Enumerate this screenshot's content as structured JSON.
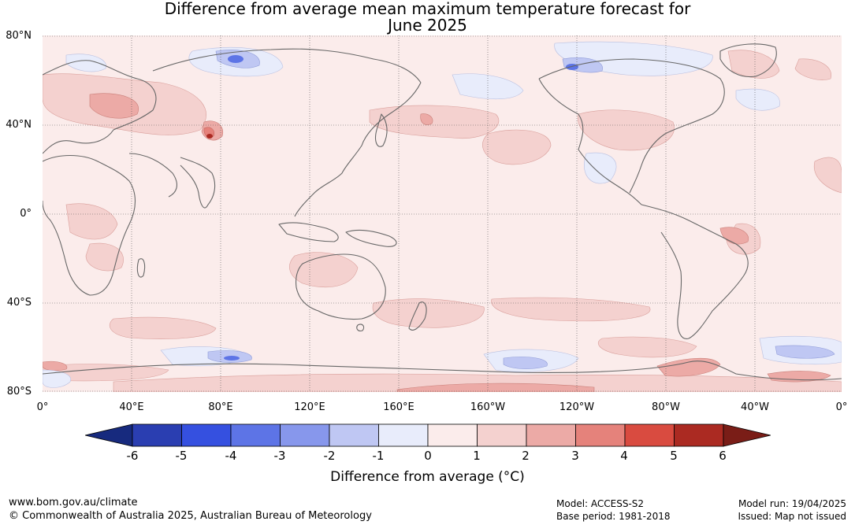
{
  "title": {
    "line1": "Difference from average mean maximum temperature forecast for",
    "line2": "June 2025"
  },
  "map": {
    "lat_labels": [
      "80°N",
      "40°N",
      "0°",
      "40°S",
      "80°S"
    ],
    "lon_labels": [
      "0°",
      "40°E",
      "80°E",
      "120°E",
      "160°E",
      "160°W",
      "120°W",
      "80°W",
      "40°W",
      "0°"
    ],
    "background_color": "#fbeceb",
    "coastline_color": "#666666"
  },
  "colorbar": {
    "ticks": [
      "-6",
      "-5",
      "-4",
      "-3",
      "-2",
      "-1",
      "0",
      "1",
      "2",
      "3",
      "4",
      "5",
      "6"
    ],
    "colors": [
      "#172a7e",
      "#2a3eb1",
      "#3550e0",
      "#5d74e6",
      "#8797ec",
      "#bfc7f3",
      "#e8ecfb",
      "#fbeceb",
      "#f4d1cf",
      "#ecaaa6",
      "#e5827b",
      "#d94b40",
      "#ab2a22",
      "#7a1d17"
    ],
    "label": "Difference from average (°C)"
  },
  "footer": {
    "url": "www.bom.gov.au/climate",
    "copyright": "© Commonwealth of Australia 2025, Australian Bureau of Meteorology",
    "model": "Model: ACCESS-S2",
    "base_period": "Base period: 1981-2018",
    "model_run": "Model run: 19/04/2025",
    "issued": "Issued: Map not issued"
  }
}
